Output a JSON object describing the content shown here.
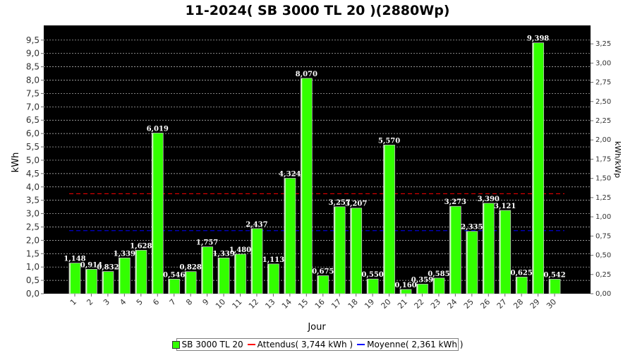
{
  "chart_data": {
    "type": "bar",
    "title": "11-2024( SB 3000 TL 20 )(2880Wp)",
    "xlabel": "Jour",
    "ylabel": "kWh",
    "y2label": "kWh/kWp",
    "categories": [
      "1",
      "2",
      "3",
      "4",
      "5",
      "6",
      "7",
      "8",
      "9",
      "10",
      "11",
      "12",
      "13",
      "14",
      "15",
      "16",
      "17",
      "18",
      "19",
      "20",
      "21",
      "22",
      "23",
      "24",
      "25",
      "26",
      "27",
      "28",
      "29",
      "30"
    ],
    "series": [
      {
        "name": "SB 3000 TL 20",
        "color": "#33ff00",
        "values": [
          1.148,
          0.914,
          0.832,
          1.339,
          1.628,
          6.019,
          0.546,
          0.828,
          1.757,
          1.339,
          1.48,
          2.437,
          1.113,
          4.324,
          8.07,
          0.675,
          3.257,
          3.207,
          0.55,
          5.57,
          0.16,
          0.359,
          0.585,
          3.273,
          2.335,
          3.39,
          3.121,
          0.625,
          9.398,
          0.542
        ],
        "labels": [
          "1,148",
          "0,914",
          "0,832",
          "1,339",
          "1,628",
          "6,019",
          "0,546",
          "0,828",
          "1,757",
          "1,339",
          "1,480",
          "2,437",
          "1,113",
          "4,324",
          "8,070",
          "0,675",
          "3,257",
          "3,207",
          "0,550",
          "5,570",
          "0,160",
          "0,359",
          "0,585",
          "3,273",
          "2,335",
          "3,390",
          "3,121",
          "0,625",
          "9,398",
          "0,542"
        ]
      }
    ],
    "reference_lines": [
      {
        "name": "Attendus",
        "value": 3.744,
        "color": "#ff0000",
        "legend_label": "Attendus( 3,744 kWh )"
      },
      {
        "name": "Moyenne",
        "value": 2.361,
        "color": "#0000ff",
        "legend_label": "Moyenne( 2,361 kWh )"
      }
    ],
    "ylim": [
      0,
      10.05
    ],
    "yticks": [
      "0,0",
      "0,5",
      "1,0",
      "1,5",
      "2,0",
      "2,5",
      "3,0",
      "3,5",
      "4,0",
      "4,5",
      "5,0",
      "5,5",
      "6,0",
      "6,5",
      "7,0",
      "7,5",
      "8,0",
      "8,5",
      "9,0",
      "9,5"
    ],
    "y2lim": [
      0,
      3.49
    ],
    "y2ticks": [
      "0,00",
      "0,25",
      "0,50",
      "0,75",
      "1,00",
      "1,25",
      "1,50",
      "1,75",
      "2,00",
      "2,25",
      "2,50",
      "2,75",
      "3,00",
      "3,25"
    ],
    "grid": true,
    "legend_position": "bottom",
    "background": "#000000"
  },
  "legend": {
    "series_label": "SB 3000 TL 20",
    "expected_label": "Attendus( 3,744 kWh )",
    "average_label": "Moyenne( 2,361 kWh )"
  }
}
